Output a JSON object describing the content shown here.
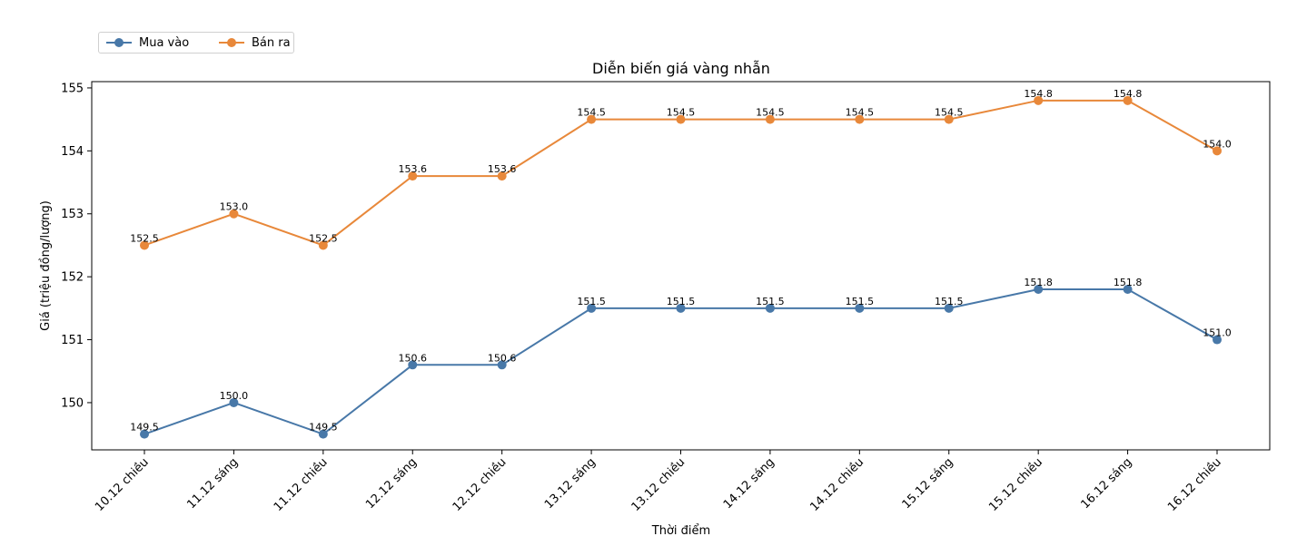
{
  "chart_data": {
    "type": "line",
    "title": "Diễn biến giá vàng nhẫn",
    "xlabel": "Thời điểm",
    "ylabel": "Giá (triệu đồng/lượng)",
    "categories": [
      "10.12 chiều",
      "11.12 sáng",
      "11.12 chiều",
      "12.12 sáng",
      "12.12 chiều",
      "13.12 sáng",
      "13.12 chiều",
      "14.12 sáng",
      "14.12 chiều",
      "15.12 sáng",
      "15.12 chiều",
      "16.12 sáng",
      "16.12 chiều"
    ],
    "ylim": [
      149.25,
      155.1
    ],
    "yticks": [
      "150",
      "151",
      "152",
      "153",
      "154",
      "155"
    ],
    "grid": false,
    "legend_position": "top-left",
    "series": [
      {
        "name": "Mua vào",
        "color": "#4878a8",
        "values": [
          149.5,
          150.0,
          149.5,
          150.6,
          150.6,
          151.5,
          151.5,
          151.5,
          151.5,
          151.5,
          151.8,
          151.8,
          151.0
        ],
        "labels": [
          "149.5",
          "150.0",
          "149.5",
          "150.6",
          "150.6",
          "151.5",
          "151.5",
          "151.5",
          "151.5",
          "151.5",
          "151.8",
          "151.8",
          "151.0"
        ]
      },
      {
        "name": "Bán ra",
        "color": "#e8883a",
        "values": [
          152.5,
          153.0,
          152.5,
          153.6,
          153.6,
          154.5,
          154.5,
          154.5,
          154.5,
          154.5,
          154.8,
          154.8,
          154.0
        ],
        "labels": [
          "152.5",
          "153.0",
          "152.5",
          "153.6",
          "153.6",
          "154.5",
          "154.5",
          "154.5",
          "154.5",
          "154.5",
          "154.8",
          "154.8",
          "154.0"
        ]
      }
    ]
  }
}
